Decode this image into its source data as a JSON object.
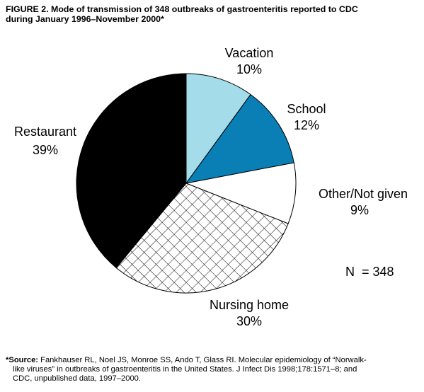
{
  "figure": {
    "title_line1": "FIGURE 2. Mode of transmission of 348 outbreaks of gastroenteritis reported to CDC",
    "title_line2": "during January 1996–November 2000*"
  },
  "chart_data": {
    "type": "pie",
    "title": "Mode of transmission of 348 outbreaks of gastroenteritis reported to CDC during January 1996–November 2000",
    "total_label": "N  = 348",
    "slices": [
      {
        "label": "Vacation",
        "percent_label": "10%",
        "value": 10,
        "fill": "#a4dcea",
        "pattern": "solid"
      },
      {
        "label": "School",
        "percent_label": "12%",
        "value": 12,
        "fill": "#0a7fb5",
        "pattern": "solid"
      },
      {
        "label": "Other/Not given",
        "percent_label": "9%",
        "value": 9,
        "fill": "#ffffff",
        "pattern": "solid"
      },
      {
        "label": "Nursing home",
        "percent_label": "30%",
        "value": 30,
        "fill": "#ffffff",
        "pattern": "crosshatch"
      },
      {
        "label": "Restaurant",
        "percent_label": "39%",
        "value": 39,
        "fill": "#000000",
        "pattern": "solid"
      }
    ],
    "start_angle_deg": 0,
    "direction": "clockwise",
    "legend": "none"
  },
  "footnote": {
    "marker": "*",
    "source_label": "Source:",
    "line1_rest": " Fankhauser RL, Noel JS, Monroe SS, Ando T, Glass RI. Molecular epidemiology of “Norwalk-",
    "line2": "like viruses” in outbreaks of gastroenteritis in the United States. J Infect Dis 1998;178:1571–8; and",
    "line3": "CDC, unpublished data, 1997–2000."
  }
}
